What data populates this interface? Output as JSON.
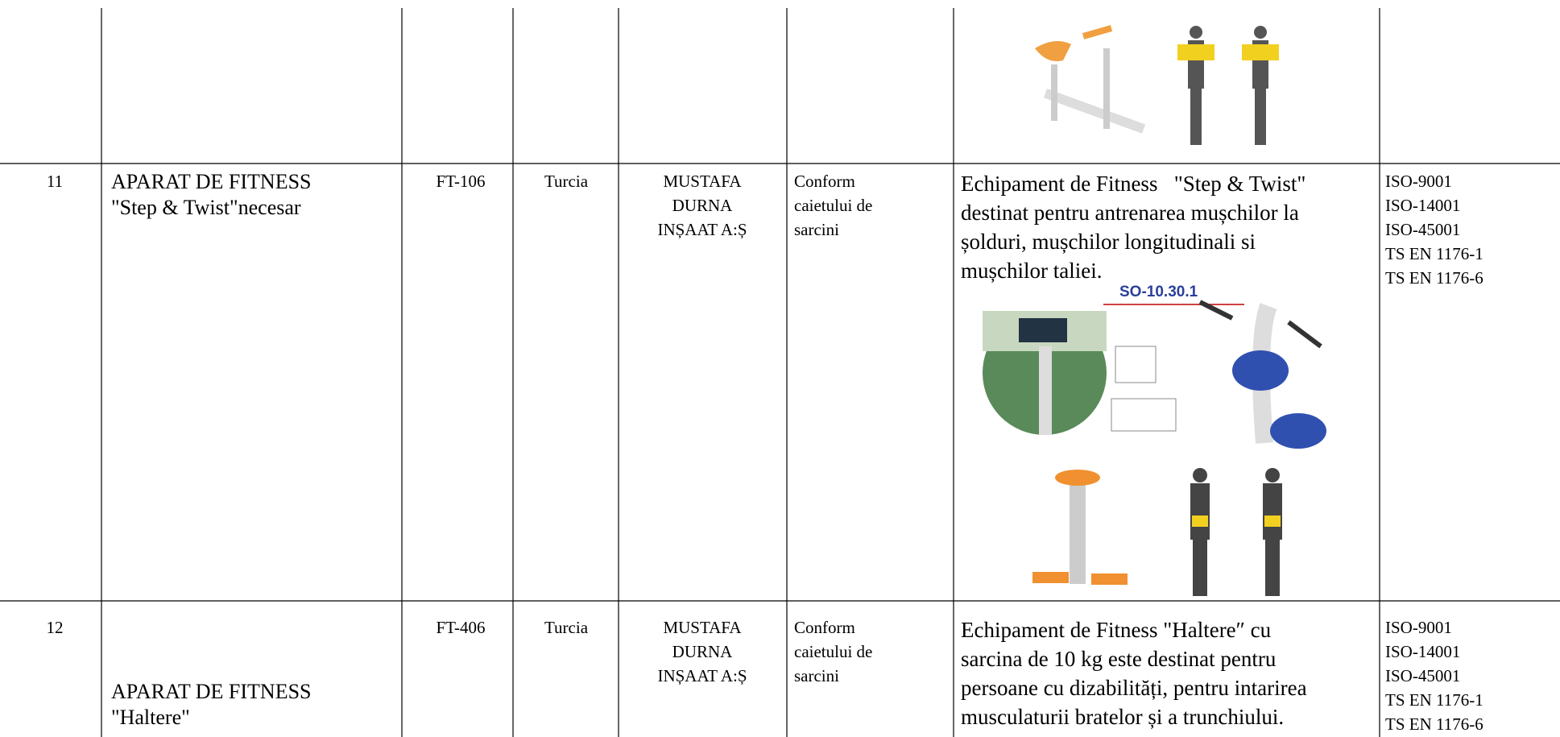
{
  "table": {
    "rows": [
      {
        "number": "11",
        "name": [
          "APARAT DE FITNESS",
          "\"Step & Twist\"necesar"
        ],
        "code": "FT-106",
        "country": "Turcia",
        "producer": [
          "MUSTAFA",
          "DURNA",
          "INȘAAT A:Ș"
        ],
        "terms": [
          "Conform",
          "caietului de",
          "sarcini"
        ],
        "description": [
          "Echipament de Fitness   \"Step & Twist\"",
          "destinat pentru antrenarea mușchilor la",
          "șolduri, mușchilor longitudinali si",
          "mușchilor taliei."
        ],
        "figure_label": "SO-10.30.1",
        "certificates": [
          "ISO-9001",
          "ISO-14001",
          "ISO-45001",
          "TS EN 1176-1",
          "TS EN 1176-6"
        ]
      },
      {
        "number": "12",
        "name": [
          "APARAT DE FITNESS",
          "\"Haltere\""
        ],
        "code": "FT-406",
        "country": "Turcia",
        "producer": [
          "MUSTAFA",
          "DURNA",
          "INȘAAT A:Ș"
        ],
        "terms": [
          "Conform",
          "caietului de",
          "sarcini"
        ],
        "description": [
          "Echipament de Fitness \"Haltere″ cu",
          "sarcina de 10 kg este destinat pentru",
          "persoane cu dizabilități, pentru intarirea",
          "musculaturii bratelor și a trunchiului."
        ],
        "certificates": [
          "ISO-9001",
          "ISO-14001",
          "ISO-45001",
          "TS EN 1176-1",
          "TS EN 1176-6"
        ]
      }
    ]
  }
}
